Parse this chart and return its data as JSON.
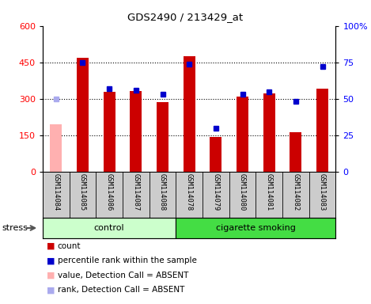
{
  "title": "GDS2490 / 213429_at",
  "samples": [
    "GSM114084",
    "GSM114085",
    "GSM114086",
    "GSM114087",
    "GSM114088",
    "GSM114078",
    "GSM114079",
    "GSM114080",
    "GSM114081",
    "GSM114082",
    "GSM114083"
  ],
  "bar_values": [
    195,
    468,
    328,
    332,
    287,
    475,
    142,
    308,
    322,
    162,
    342
  ],
  "bar_absent": [
    true,
    false,
    false,
    false,
    false,
    false,
    false,
    false,
    false,
    false,
    false
  ],
  "rank_values": [
    50,
    75,
    57,
    56,
    53,
    74,
    30,
    53,
    55,
    48,
    72
  ],
  "rank_absent": [
    true,
    false,
    false,
    false,
    false,
    false,
    false,
    false,
    false,
    false,
    false
  ],
  "n_control": 5,
  "n_smoking": 6,
  "ylim_left": [
    0,
    600
  ],
  "ylim_right": [
    0,
    100
  ],
  "yticks_left": [
    0,
    150,
    300,
    450,
    600
  ],
  "yticks_right": [
    0,
    25,
    50,
    75,
    100
  ],
  "ytick_labels_right": [
    "0",
    "25",
    "50",
    "75",
    "100%"
  ],
  "bar_color_present": "#cc0000",
  "bar_color_absent": "#ffb0b0",
  "rank_color_present": "#0000cc",
  "rank_color_absent": "#aaaaee",
  "control_bg": "#ccffcc",
  "smoking_bg": "#44dd44",
  "sample_bg": "#cccccc",
  "legend_items": [
    {
      "color": "#cc0000",
      "label": "count"
    },
    {
      "color": "#0000cc",
      "label": "percentile rank within the sample"
    },
    {
      "color": "#ffb0b0",
      "label": "value, Detection Call = ABSENT"
    },
    {
      "color": "#aaaaee",
      "label": "rank, Detection Call = ABSENT"
    }
  ]
}
